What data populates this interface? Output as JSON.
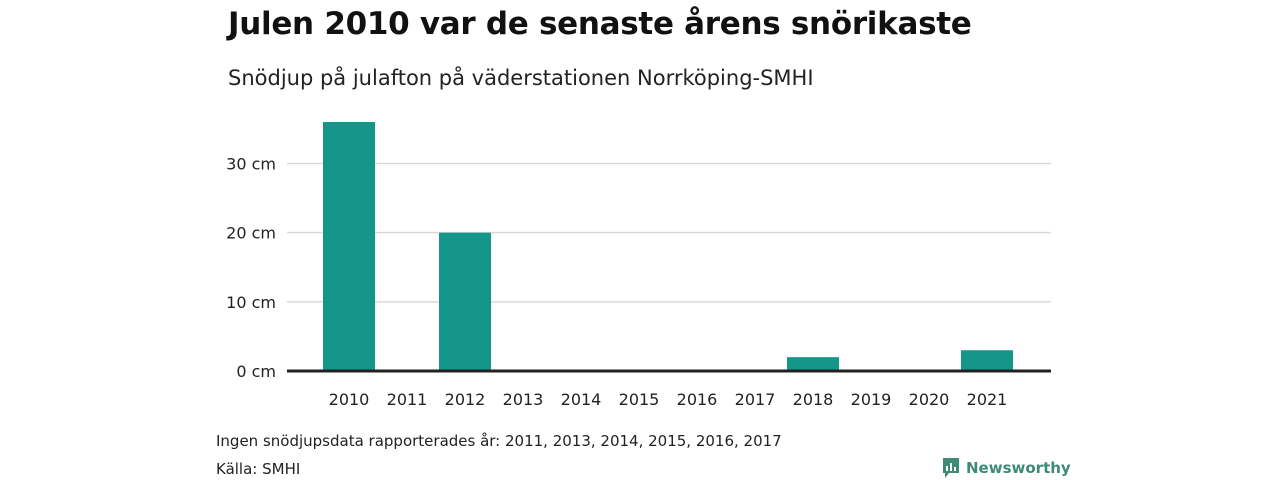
{
  "header": {
    "title": "Julen 2010 var de senaste årens snörikaste",
    "subtitle": "Snödjup på julafton på väderstationen Norrköping-SMHI"
  },
  "footer": {
    "note": "Ingen snödjupsdata rapporterades år: 2011, 2013, 2014, 2015, 2016, 2017",
    "source": "Källa: SMHI",
    "brand": "Newsworthy"
  },
  "colors": {
    "bar": "#14968a",
    "grid": "#d9d9d9",
    "baseline": "#222222",
    "brand": "#3f8a76"
  },
  "chart_data": {
    "type": "bar",
    "categories": [
      "2010",
      "2011",
      "2012",
      "2013",
      "2014",
      "2015",
      "2016",
      "2017",
      "2018",
      "2019",
      "2020",
      "2021"
    ],
    "values": [
      36,
      null,
      20,
      null,
      null,
      null,
      null,
      null,
      2,
      0,
      0,
      3
    ],
    "ylim": [
      0,
      36
    ],
    "yticks": [
      0,
      10,
      20,
      30
    ],
    "ytick_labels": [
      "0 cm",
      "10 cm",
      "20 cm",
      "30 cm"
    ],
    "grid": true,
    "legend": "none"
  }
}
